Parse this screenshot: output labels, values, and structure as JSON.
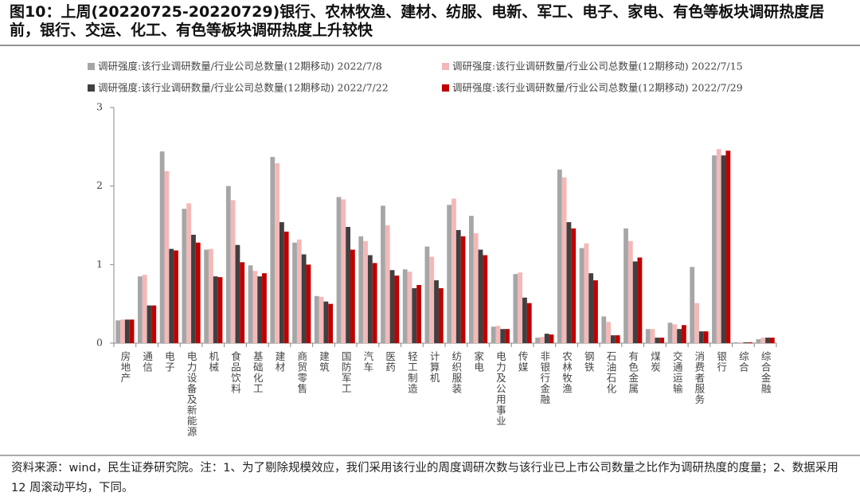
{
  "chart_data": {
    "type": "bar",
    "title": "图10：上周(20220725-20220729)银行、农林牧渔、建材、纺服、电新、军工、电子、家电、有色等板块调研热度居前，银行、交运、化工、有色等板块调研热度上升较快",
    "footnote": "资料来源：wind，民生证券研究院。注：1、为了剔除规模效应，我们采用该行业的周度调研次数与该行业已上市公司数量之比作为调研热度的度量；2、数据采用 12 周滚动平均，下同。",
    "categories": [
      "房地产",
      "通信",
      "电子",
      "电力设备及新能源",
      "机械",
      "食品饮料",
      "基础化工",
      "建材",
      "商贸零售",
      "建筑",
      "国防军工",
      "汽车",
      "医药",
      "轻工制造",
      "计算机",
      "纺织服装",
      "家电",
      "电力及公用事业",
      "传媒",
      "非银行金融",
      "农林牧渔",
      "钢铁",
      "石油石化",
      "有色金属",
      "煤炭",
      "交通运输",
      "消费者服务",
      "银行",
      "综合",
      "综合金融"
    ],
    "series": [
      {
        "name": "调研强度:该行业调研数量/行业公司总数量(12期移动) 2022/7/8",
        "color": "#a6a6a6",
        "values": [
          0.29,
          0.85,
          2.44,
          1.71,
          1.19,
          2.0,
          0.99,
          2.37,
          1.28,
          0.6,
          1.86,
          1.36,
          1.75,
          0.94,
          1.23,
          1.76,
          1.62,
          0.21,
          0.88,
          0.07,
          2.21,
          1.21,
          0.34,
          1.46,
          0.18,
          0.26,
          0.97,
          2.39,
          0.01,
          0.05
        ]
      },
      {
        "name": "调研强度:该行业调研数量/行业公司总数量(12期移动) 2022/7/15",
        "color": "#f4b8b8",
        "values": [
          0.3,
          0.87,
          2.19,
          1.78,
          1.2,
          1.82,
          0.92,
          2.29,
          1.32,
          0.59,
          1.83,
          1.3,
          1.5,
          0.91,
          1.1,
          1.84,
          1.4,
          0.22,
          0.9,
          0.08,
          2.11,
          1.27,
          0.27,
          1.3,
          0.18,
          0.24,
          0.51,
          2.47,
          0.01,
          0.07
        ]
      },
      {
        "name": "调研强度:该行业调研数量/行业公司总数量(12期移动) 2022/7/22",
        "color": "#404040",
        "values": [
          0.3,
          0.48,
          1.2,
          1.38,
          0.85,
          1.25,
          0.85,
          1.54,
          1.13,
          0.53,
          1.48,
          1.12,
          0.93,
          0.7,
          0.8,
          1.44,
          1.19,
          0.18,
          0.58,
          0.12,
          1.54,
          0.89,
          0.1,
          1.04,
          0.07,
          0.18,
          0.15,
          2.39,
          0.01,
          0.07
        ]
      },
      {
        "name": "调研强度:该行业调研数量/行业公司总数量(12期移动) 2022/7/29",
        "color": "#c00000",
        "values": [
          0.3,
          0.48,
          1.18,
          1.28,
          0.84,
          1.03,
          0.89,
          1.42,
          1.0,
          0.5,
          1.19,
          1.02,
          0.86,
          0.74,
          0.7,
          1.36,
          1.12,
          0.18,
          0.51,
          0.11,
          1.46,
          0.8,
          0.1,
          1.09,
          0.07,
          0.23,
          0.15,
          2.45,
          0.01,
          0.07
        ]
      }
    ],
    "ylim": [
      0,
      3
    ],
    "yticks": [
      0,
      1,
      2,
      3
    ]
  }
}
